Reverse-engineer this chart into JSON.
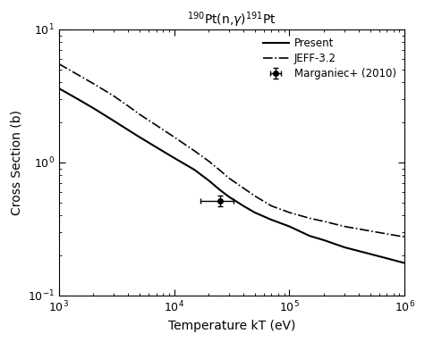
{
  "title": "$^{190}$Pt(n,$\\gamma$)$^{191}$Pt",
  "xlabel": "Temperature kT (eV)",
  "ylabel": "Cross Section (b)",
  "xlim": [
    1000.0,
    1000000.0
  ],
  "ylim": [
    0.1,
    10
  ],
  "present_x": [
    1000,
    1500,
    2000,
    3000,
    4000,
    5000,
    7000,
    10000,
    15000,
    20000,
    25000,
    30000,
    40000,
    50000,
    70000,
    100000,
    150000,
    200000,
    300000,
    500000,
    700000,
    1000000
  ],
  "present_y": [
    3.6,
    2.95,
    2.55,
    2.05,
    1.75,
    1.55,
    1.3,
    1.08,
    0.88,
    0.73,
    0.62,
    0.55,
    0.47,
    0.42,
    0.37,
    0.33,
    0.28,
    0.26,
    0.23,
    0.205,
    0.19,
    0.175
  ],
  "jeff_x": [
    1000,
    1500,
    2000,
    3000,
    4000,
    5000,
    7000,
    10000,
    15000,
    20000,
    25000,
    30000,
    40000,
    50000,
    70000,
    100000,
    150000,
    200000,
    300000,
    500000,
    700000,
    1000000
  ],
  "jeff_y": [
    5.5,
    4.5,
    3.9,
    3.15,
    2.65,
    2.3,
    1.9,
    1.55,
    1.22,
    1.02,
    0.87,
    0.76,
    0.64,
    0.56,
    0.47,
    0.42,
    0.38,
    0.36,
    0.33,
    0.305,
    0.29,
    0.275
  ],
  "data_x": [
    25000
  ],
  "data_y": [
    0.517
  ],
  "data_xerr": [
    8000
  ],
  "data_yerr": [
    0.048
  ],
  "legend_labels": [
    "Present",
    "JEFF-3.2",
    "Marganiec+ (2010)"
  ],
  "line_color": "black",
  "background_color": "white",
  "title_fontsize": 10,
  "label_fontsize": 10,
  "tick_fontsize": 9
}
